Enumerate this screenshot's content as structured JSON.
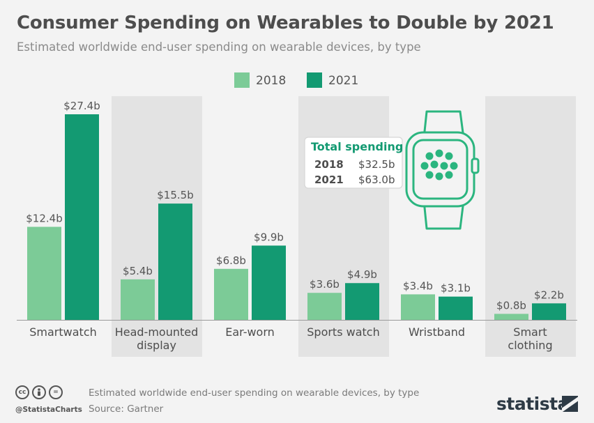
{
  "title": "Consumer Spending on Wearables to Double by 2021",
  "subtitle": "Estimated worldwide end-user spending on wearable devices, by type",
  "chart_data": {
    "type": "bar",
    "categories": [
      "Smartwatch",
      "Head-mounted\ndisplay",
      "Ear-worn",
      "Sports watch",
      "Wristband",
      "Smart\nclothing"
    ],
    "series": [
      {
        "name": "2018",
        "color": "#7ccb97",
        "values": [
          12.4,
          5.4,
          6.8,
          3.6,
          3.4,
          0.8
        ]
      },
      {
        "name": "2021",
        "color": "#139a72",
        "values": [
          27.4,
          15.5,
          9.9,
          4.9,
          3.1,
          2.2
        ]
      }
    ],
    "value_prefix": "$",
    "value_suffix": "b",
    "ylim": [
      0,
      27.4
    ],
    "legend_position": "top-center",
    "shaded_categories": [
      1,
      3,
      5
    ],
    "shade_color": "#e3e3e3",
    "annotation": {
      "title": "Total spending",
      "rows": [
        {
          "year": "2018",
          "value": "$32.5b"
        },
        {
          "year": "2021",
          "value": "$63.0b"
        }
      ]
    }
  },
  "footer": {
    "note": "Estimated worldwide end-user spending on wearable devices, by type",
    "source": "Source: Gartner",
    "handle": "@StatistaCharts",
    "brand": "statista",
    "license_icons": [
      "cc",
      "person",
      "="
    ]
  }
}
